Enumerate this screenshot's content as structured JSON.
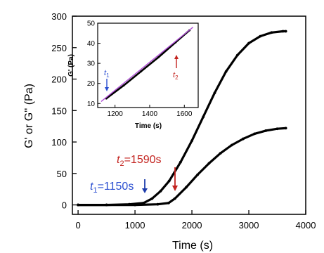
{
  "chart_data": [
    {
      "type": "line",
      "xlabel": "Time (s)",
      "ylabel": "G' or G'' (Pa)",
      "xlim": [
        -100,
        4000
      ],
      "ylim": [
        -15,
        300
      ],
      "x_ticks": [
        0,
        1000,
        2000,
        3000,
        4000
      ],
      "y_ticks": [
        0,
        50,
        100,
        150,
        200,
        250,
        300
      ],
      "series": [
        {
          "x": [
            0,
            500,
            900,
            1150,
            1300,
            1450,
            1600,
            1800,
            2000,
            2200,
            2400,
            2600,
            2800,
            3000,
            3200,
            3400,
            3600,
            3650
          ],
          "y": [
            0,
            0,
            1,
            3,
            10,
            22,
            38,
            68,
            102,
            140,
            178,
            212,
            238,
            257,
            268,
            274,
            276,
            276
          ]
        },
        {
          "x": [
            0,
            500,
            1000,
            1400,
            1590,
            1700,
            1900,
            2100,
            2300,
            2500,
            2700,
            2900,
            3100,
            3300,
            3500,
            3650
          ],
          "y": [
            0,
            0,
            0,
            1,
            3,
            10,
            28,
            48,
            66,
            82,
            95,
            105,
            113,
            118,
            121,
            122
          ]
        }
      ],
      "annotations": [
        {
          "prefix": "t",
          "sub": "1",
          "suffix": "=1150s",
          "x": 1150,
          "color": "#2b4fd1"
        },
        {
          "prefix": "t",
          "sub": "2",
          "suffix": "=1590s",
          "x": 1590,
          "color": "#c3231f"
        }
      ]
    },
    {
      "type": "line",
      "inset": true,
      "xlabel": "Time (s)",
      "ylabel": "G' (Pa)",
      "xlim": [
        1100,
        1680
      ],
      "ylim": [
        8,
        50
      ],
      "x_ticks": [
        1200,
        1400,
        1600
      ],
      "y_ticks": [
        10,
        20,
        30,
        40,
        50
      ],
      "series": [
        {
          "x": [
            1150,
            1250,
            1350,
            1450,
            1550,
            1630
          ],
          "y": [
            12.5,
            19,
            26,
            33,
            40.5,
            46.5
          ]
        },
        {
          "x": [
            1120,
            1650
          ],
          "y": [
            11,
            48
          ],
          "color": "#b04fd6"
        }
      ],
      "annotations": [
        {
          "prefix": "t",
          "sub": "1",
          "x": 1150,
          "color": "#2b4fd1"
        },
        {
          "prefix": "t",
          "sub": "2",
          "x": 1590,
          "color": "#c3231f"
        }
      ]
    }
  ]
}
